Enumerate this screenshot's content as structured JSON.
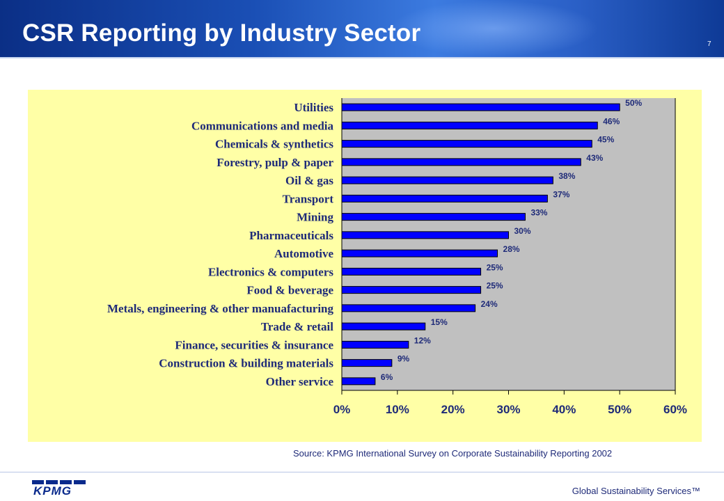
{
  "slide": {
    "title": "CSR Reporting by Industry Sector",
    "page_number": "7",
    "source": "Source: KPMG International Survey on Corporate Sustainability Reporting 2002",
    "footer": "Global Sustainability Services™",
    "logo_text": "KPMG"
  },
  "colors": {
    "bar_fill": "#0000ff",
    "bar_stroke": "#000000",
    "plot_background": "#c0c0c0",
    "panel_background": "#ffffa6",
    "text": "#1e2a78"
  },
  "chart_data": {
    "type": "bar",
    "orientation": "horizontal",
    "title": "",
    "xlabel": "",
    "ylabel": "",
    "categories": [
      "Utilities",
      "Communications and media",
      "Chemicals & synthetics",
      "Forestry, pulp & paper",
      "Oil & gas",
      "Transport",
      "Mining",
      "Pharmaceuticals",
      "Automotive",
      "Electronics & computers",
      "Food & beverage",
      "Metals, engineering & other manuafacturing",
      "Trade & retail",
      "Finance, securities & insurance",
      "Construction & building materials",
      "Other service"
    ],
    "values": [
      50,
      46,
      45,
      43,
      38,
      37,
      33,
      30,
      28,
      25,
      25,
      24,
      15,
      12,
      9,
      6
    ],
    "data_labels": [
      "50%",
      "46%",
      "45%",
      "43%",
      "38%",
      "37%",
      "33%",
      "30%",
      "28%",
      "25%",
      "25%",
      "24%",
      "15%",
      "12%",
      "9%",
      "6%"
    ],
    "xlim": [
      0,
      60
    ],
    "x_ticks": [
      0,
      10,
      20,
      30,
      40,
      50,
      60
    ],
    "x_tick_labels": [
      "0%",
      "10%",
      "20%",
      "30%",
      "40%",
      "50%",
      "60%"
    ],
    "grid": false,
    "legend": "none"
  }
}
